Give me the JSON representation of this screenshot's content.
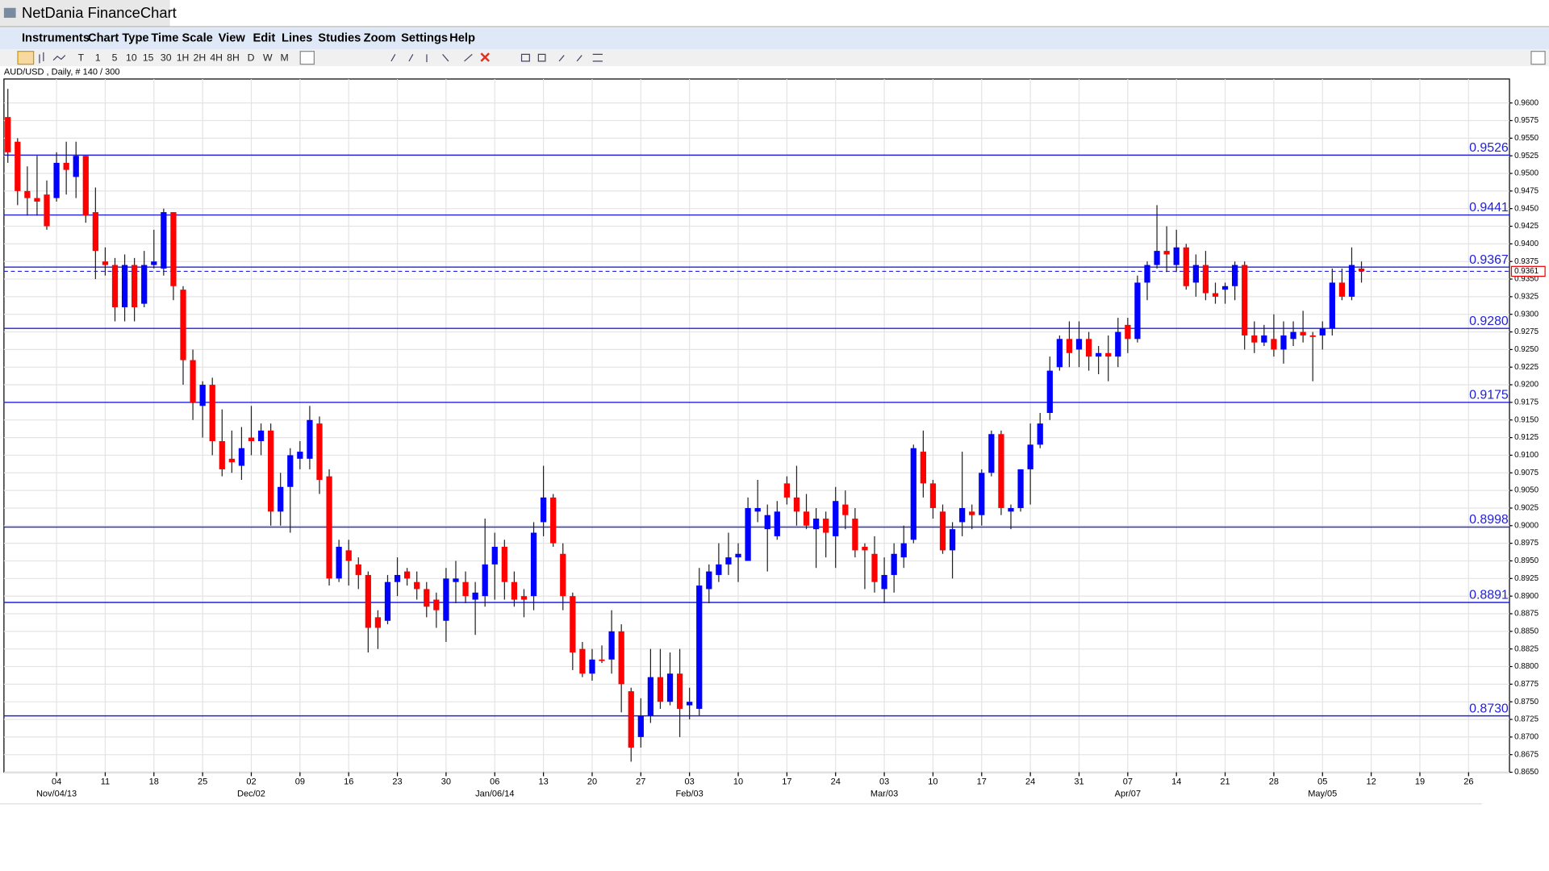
{
  "window": {
    "title": "NetDania FinanceChart",
    "menu": [
      "Instruments",
      "Chart Type",
      "Time Scale",
      "View",
      "Edit",
      "Lines",
      "Studies",
      "Zoom",
      "Settings",
      "Help"
    ],
    "timeframes": [
      "T",
      "1",
      "5",
      "10",
      "15",
      "30",
      "1H",
      "2H",
      "4H",
      "8H",
      "D",
      "W",
      "M"
    ]
  },
  "chart_data": {
    "type": "candlestick",
    "subtitle": "AUD/USD , Daily, # 140 / 300",
    "up_color": "#0000ff",
    "down_color": "#ff0000",
    "level_color": "#2020dd",
    "grid": true,
    "open": [
      0.958,
      0.9545,
      0.9475,
      0.9465,
      0.947,
      0.9465,
      0.9515,
      0.9495,
      0.9525,
      0.9445,
      0.9375,
      0.937,
      0.931,
      0.937,
      0.9315,
      0.937,
      0.9365,
      0.9445,
      0.9335,
      0.9235,
      0.917,
      0.92,
      0.912,
      0.9095,
      0.9085,
      0.9125,
      0.912,
      0.9135,
      0.902,
      0.9055,
      0.9095,
      0.9095,
      0.9145,
      0.907,
      0.8925,
      0.8965,
      0.8945,
      0.893,
      0.887,
      0.8865,
      0.892,
      0.8935,
      0.892,
      0.891,
      0.8895,
      0.8865,
      0.892,
      0.892,
      0.8895,
      0.89,
      0.8945,
      0.897,
      0.892,
      0.89,
      0.89,
      0.9005,
      0.904,
      0.896,
      0.89,
      0.8825,
      0.879,
      0.881,
      0.881,
      0.885,
      0.8765,
      0.87,
      0.873,
      0.8785,
      0.875,
      0.879,
      0.8745,
      0.874,
      0.891,
      0.893,
      0.8945,
      0.8955,
      0.895,
      0.902,
      0.8995,
      0.8985,
      0.906,
      0.904,
      0.902,
      0.8995,
      0.901,
      0.8985,
      0.903,
      0.901,
      0.897,
      0.896,
      0.891,
      0.893,
      0.8955,
      0.898,
      0.9105,
      0.906,
      0.902,
      0.8965,
      0.9005,
      0.902,
      0.9015,
      0.9075,
      0.913,
      0.902,
      0.9025,
      0.908,
      0.9115,
      0.916,
      0.9225,
      0.9265,
      0.925,
      0.9265,
      0.924,
      0.9245,
      0.924,
      0.9285,
      0.9265,
      0.9345,
      0.937,
      0.939,
      0.937,
      0.9395,
      0.9345,
      0.937,
      0.933,
      0.9335,
      0.934,
      0.937,
      0.927,
      0.926,
      0.9265,
      0.925,
      0.9265,
      0.9275,
      0.927,
      0.927,
      0.928,
      0.9345,
      0.9325,
      0.9365
    ],
    "high": [
      0.962,
      0.955,
      0.951,
      0.9525,
      0.949,
      0.953,
      0.9545,
      0.9545,
      0.9525,
      0.948,
      0.9395,
      0.938,
      0.9385,
      0.938,
      0.939,
      0.942,
      0.945,
      0.9445,
      0.934,
      0.925,
      0.9205,
      0.921,
      0.9165,
      0.9135,
      0.914,
      0.917,
      0.9145,
      0.9145,
      0.9075,
      0.911,
      0.912,
      0.917,
      0.9155,
      0.908,
      0.898,
      0.898,
      0.8955,
      0.8935,
      0.888,
      0.893,
      0.8955,
      0.894,
      0.8935,
      0.892,
      0.8905,
      0.894,
      0.895,
      0.8935,
      0.892,
      0.901,
      0.899,
      0.898,
      0.8935,
      0.891,
      0.9005,
      0.9085,
      0.9045,
      0.8975,
      0.8905,
      0.8835,
      0.8825,
      0.883,
      0.888,
      0.886,
      0.877,
      0.8755,
      0.8825,
      0.8825,
      0.882,
      0.8825,
      0.877,
      0.894,
      0.8945,
      0.8975,
      0.899,
      0.8975,
      0.904,
      0.9065,
      0.903,
      0.9035,
      0.907,
      0.9085,
      0.9045,
      0.9025,
      0.902,
      0.9055,
      0.905,
      0.9025,
      0.8975,
      0.8985,
      0.8955,
      0.8975,
      0.9,
      0.9115,
      0.9135,
      0.9065,
      0.903,
      0.9005,
      0.9105,
      0.903,
      0.908,
      0.9135,
      0.9135,
      0.903,
      0.908,
      0.9145,
      0.916,
      0.924,
      0.927,
      0.929,
      0.929,
      0.9275,
      0.9255,
      0.927,
      0.9295,
      0.9295,
      0.9355,
      0.9375,
      0.9455,
      0.9425,
      0.942,
      0.94,
      0.9385,
      0.939,
      0.9345,
      0.9345,
      0.9375,
      0.9375,
      0.929,
      0.9285,
      0.93,
      0.929,
      0.929,
      0.9305,
      0.9275,
      0.929,
      0.9365,
      0.9365,
      0.9395,
      0.9375
    ],
    "low": [
      0.9515,
      0.9455,
      0.944,
      0.944,
      0.942,
      0.946,
      0.947,
      0.9465,
      0.943,
      0.935,
      0.9355,
      0.929,
      0.929,
      0.929,
      0.931,
      0.9365,
      0.9355,
      0.932,
      0.92,
      0.915,
      0.9125,
      0.91,
      0.907,
      0.9075,
      0.9065,
      0.91,
      0.91,
      0.9,
      0.9,
      0.899,
      0.908,
      0.908,
      0.9045,
      0.8915,
      0.892,
      0.8915,
      0.891,
      0.882,
      0.8825,
      0.886,
      0.89,
      0.8915,
      0.8895,
      0.887,
      0.8855,
      0.8835,
      0.889,
      0.889,
      0.8845,
      0.8885,
      0.8895,
      0.8895,
      0.8885,
      0.887,
      0.888,
      0.8985,
      0.897,
      0.888,
      0.8795,
      0.8785,
      0.878,
      0.8805,
      0.879,
      0.8735,
      0.8665,
      0.8685,
      0.872,
      0.874,
      0.8745,
      0.87,
      0.8725,
      0.873,
      0.889,
      0.892,
      0.893,
      0.892,
      0.895,
      0.9005,
      0.8935,
      0.898,
      0.903,
      0.9,
      0.8995,
      0.894,
      0.8955,
      0.894,
      0.8995,
      0.8955,
      0.891,
      0.8905,
      0.889,
      0.8905,
      0.894,
      0.8975,
      0.904,
      0.901,
      0.896,
      0.8925,
      0.8985,
      0.8995,
      0.9,
      0.907,
      0.9015,
      0.8995,
      0.902,
      0.903,
      0.911,
      0.915,
      0.922,
      0.9225,
      0.9225,
      0.922,
      0.9215,
      0.9205,
      0.9225,
      0.9245,
      0.926,
      0.932,
      0.9365,
      0.936,
      0.936,
      0.9335,
      0.9325,
      0.932,
      0.9315,
      0.9315,
      0.932,
      0.925,
      0.9245,
      0.9255,
      0.924,
      0.923,
      0.9255,
      0.926,
      0.9205,
      0.925,
      0.927,
      0.932,
      0.932,
      0.9345
    ],
    "close": [
      0.953,
      0.9475,
      0.9465,
      0.946,
      0.9425,
      0.9515,
      0.9505,
      0.9525,
      0.944,
      0.939,
      0.937,
      0.931,
      0.937,
      0.931,
      0.937,
      0.9375,
      0.9445,
      0.934,
      0.9235,
      0.9175,
      0.92,
      0.912,
      0.908,
      0.909,
      0.911,
      0.912,
      0.9135,
      0.902,
      0.9055,
      0.91,
      0.9105,
      0.915,
      0.9065,
      0.8925,
      0.897,
      0.895,
      0.893,
      0.8855,
      0.8855,
      0.892,
      0.893,
      0.8925,
      0.891,
      0.8885,
      0.888,
      0.8925,
      0.8925,
      0.89,
      0.8905,
      0.8945,
      0.897,
      0.892,
      0.8895,
      0.8895,
      0.899,
      0.904,
      0.8975,
      0.89,
      0.882,
      0.879,
      0.881,
      0.8808,
      0.885,
      0.8775,
      0.8685,
      0.873,
      0.8785,
      0.875,
      0.879,
      0.874,
      0.875,
      0.8915,
      0.8935,
      0.8945,
      0.8955,
      0.896,
      0.9025,
      0.9025,
      0.9015,
      0.902,
      0.904,
      0.902,
      0.9,
      0.901,
      0.899,
      0.9035,
      0.9015,
      0.8965,
      0.8965,
      0.892,
      0.893,
      0.896,
      0.8975,
      0.911,
      0.906,
      0.9025,
      0.8965,
      0.8995,
      0.9025,
      0.9015,
      0.9075,
      0.913,
      0.9025,
      0.9025,
      0.908,
      0.9115,
      0.9145,
      0.922,
      0.9265,
      0.9245,
      0.9265,
      0.924,
      0.9245,
      0.924,
      0.9275,
      0.9265,
      0.9345,
      0.937,
      0.939,
      0.9385,
      0.9395,
      0.934,
      0.937,
      0.933,
      0.9325,
      0.934,
      0.937,
      0.927,
      0.926,
      0.927,
      0.925,
      0.927,
      0.9275,
      0.927,
      0.9268,
      0.928,
      0.9345,
      0.9325,
      0.937,
      0.9361
    ],
    "levels": [
      0.9526,
      0.9441,
      0.9367,
      {
        "value": 0.928,
        "label": "0.9280"
      },
      0.9175,
      0.8998,
      0.8891,
      {
        "value": 0.873,
        "label": "0.8730"
      }
    ],
    "last_price": 0.9361,
    "ylim": [
      0.865,
      0.9634
    ],
    "yticks": [
      {
        "value": 0.865,
        "label": "0.8650"
      },
      {
        "value": 0.8675,
        "label": "0.8675"
      },
      {
        "value": 0.87,
        "label": "0.8700"
      },
      {
        "value": 0.8725,
        "label": "0.8725"
      },
      {
        "value": 0.875,
        "label": "0.8750"
      },
      {
        "value": 0.8775,
        "label": "0.8775"
      },
      {
        "value": 0.88,
        "label": "0.8800"
      },
      {
        "value": 0.8825,
        "label": "0.8825"
      },
      {
        "value": 0.885,
        "label": "0.8850"
      },
      {
        "value": 0.8875,
        "label": "0.8875"
      },
      {
        "value": 0.89,
        "label": "0.8900"
      },
      {
        "value": 0.8925,
        "label": "0.8925"
      },
      {
        "value": 0.895,
        "label": "0.8950"
      },
      {
        "value": 0.8975,
        "label": "0.8975"
      },
      {
        "value": 0.9,
        "label": "0.9000"
      },
      {
        "value": 0.9025,
        "label": "0.9025"
      },
      {
        "value": 0.905,
        "label": "0.9050"
      },
      {
        "value": 0.9075,
        "label": "0.9075"
      },
      {
        "value": 0.91,
        "label": "0.9100"
      },
      {
        "value": 0.9125,
        "label": "0.9125"
      },
      {
        "value": 0.915,
        "label": "0.9150"
      },
      {
        "value": 0.9175,
        "label": "0.9175"
      },
      {
        "value": 0.92,
        "label": "0.9200"
      },
      {
        "value": 0.9225,
        "label": "0.9225"
      },
      {
        "value": 0.925,
        "label": "0.9250"
      },
      {
        "value": 0.9275,
        "label": "0.9275"
      },
      {
        "value": 0.93,
        "label": "0.9300"
      },
      {
        "value": 0.9325,
        "label": "0.9325"
      },
      {
        "value": 0.935,
        "label": "0.9350"
      },
      {
        "value": 0.9375,
        "label": "0.9375"
      },
      {
        "value": 0.94,
        "label": "0.9400"
      },
      {
        "value": 0.9425,
        "label": "0.9425"
      },
      {
        "value": 0.945,
        "label": "0.9450"
      },
      {
        "value": 0.9475,
        "label": "0.9475"
      },
      {
        "value": 0.95,
        "label": "0.9500"
      },
      {
        "value": 0.9525,
        "label": "0.9525"
      },
      {
        "value": 0.955,
        "label": "0.9550"
      },
      {
        "value": 0.9575,
        "label": "0.9575"
      },
      {
        "value": 0.96,
        "label": "0.9600"
      }
    ],
    "xlim": [
      -0.4,
      154.2
    ],
    "xticks": [
      {
        "value": 5,
        "label": "04"
      },
      {
        "value": 10,
        "label": "11"
      },
      {
        "value": 15,
        "label": "18"
      },
      {
        "value": 20,
        "label": "25"
      },
      {
        "value": 25,
        "label": "02"
      },
      {
        "value": 30,
        "label": "09"
      },
      {
        "value": 35,
        "label": "16"
      },
      {
        "value": 40,
        "label": "23"
      },
      {
        "value": 45,
        "label": "30"
      },
      {
        "value": 50,
        "label": "06"
      },
      {
        "value": 55,
        "label": "13"
      },
      {
        "value": 60,
        "label": "20"
      },
      {
        "value": 65,
        "label": "27"
      },
      {
        "value": 70,
        "label": "03"
      },
      {
        "value": 75,
        "label": "10"
      },
      {
        "value": 80,
        "label": "17"
      },
      {
        "value": 85,
        "label": "24"
      },
      {
        "value": 90,
        "label": "03"
      },
      {
        "value": 95,
        "label": "10"
      },
      {
        "value": 100,
        "label": "17"
      },
      {
        "value": 105,
        "label": "24"
      },
      {
        "value": 110,
        "label": "31"
      },
      {
        "value": 115,
        "label": "07"
      },
      {
        "value": 120,
        "label": "14"
      },
      {
        "value": 125,
        "label": "21"
      },
      {
        "value": 130,
        "label": "28"
      },
      {
        "value": 135,
        "label": "05"
      },
      {
        "value": 140,
        "label": "12"
      },
      {
        "value": 145,
        "label": "19"
      },
      {
        "value": 150,
        "label": "26"
      }
    ],
    "xticks_major": [
      {
        "value": 5,
        "label": "Nov/04/13"
      },
      {
        "value": 25,
        "label": "Dec/02"
      },
      {
        "value": 50,
        "label": "Jan/06/14"
      },
      {
        "value": 70,
        "label": "Feb/03"
      },
      {
        "value": 90,
        "label": "Mar/03"
      },
      {
        "value": 115,
        "label": "Apr/07"
      },
      {
        "value": 135,
        "label": "May/05"
      }
    ]
  }
}
